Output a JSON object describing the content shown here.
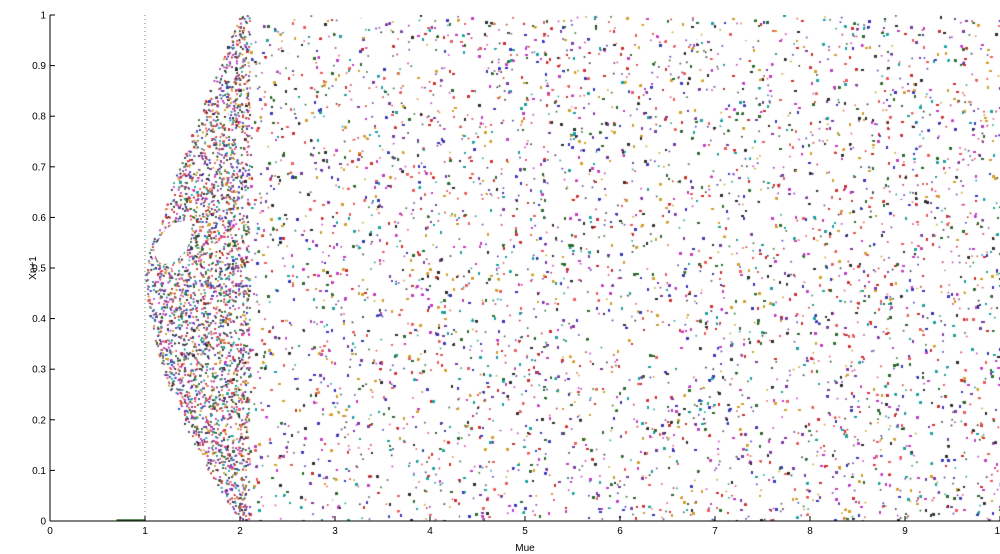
{
  "chart_data": {
    "type": "scatter",
    "title": "",
    "xlabel": "Mue",
    "ylabel": "Xn+1",
    "xlim": [
      0,
      10
    ],
    "ylim": [
      0,
      1
    ],
    "grid": false,
    "x_ticks": [
      "0",
      "1",
      "2",
      "3",
      "4",
      "5",
      "6",
      "7",
      "8",
      "9",
      "10"
    ],
    "y_ticks": [
      "0",
      "0.1",
      "0.2",
      "0.3",
      "0.4",
      "0.5",
      "0.6",
      "0.7",
      "0.8",
      "0.9",
      "1"
    ],
    "series": [
      {
        "description_of_points": "dense multicolored scatter filling the region",
        "regions": [
          {
            "mue_range": [
              1,
              2
            ],
            "upper_bound_at_mue_2": 1,
            "lower_bound_at_mue_2": 0,
            "value_at_mue_1": 0.5
          },
          {
            "mue_range": [
              2,
              10
            ],
            "y_range": [
              0,
              1
            ]
          }
        ],
        "colors": [
          "#cc3333",
          "#2f6b2f",
          "#3b3bb8",
          "#c040c0",
          "#20a0a0",
          "#d0a030",
          "#303030",
          "#e86060",
          "#7a3fa0",
          "#ffffff"
        ]
      }
    ],
    "annotations": [
      {
        "kind": "white-loop",
        "center": [
          1.3,
          0.55
        ]
      },
      {
        "kind": "vertical-dotted-line",
        "x": 1
      }
    ]
  }
}
